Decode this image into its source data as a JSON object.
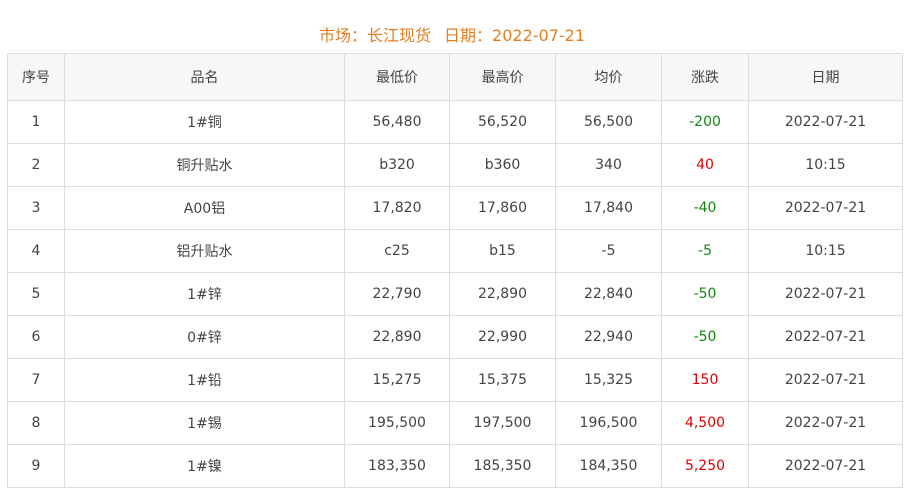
{
  "title": {
    "market_label": "市场：长江现货",
    "date_label": "日期：2022-07-21"
  },
  "colors": {
    "title": "#e87d1e",
    "up": "#e00000",
    "down": "#118811"
  },
  "headers": [
    "序号",
    "品名",
    "最低价",
    "最高价",
    "均价",
    "涨跌",
    "日期"
  ],
  "rows": [
    {
      "no": "1",
      "name": "1#铜",
      "low": "56,480",
      "high": "56,520",
      "avg": "56,500",
      "change": "-200",
      "date": "2022-07-21",
      "dir": "down"
    },
    {
      "no": "2",
      "name": "铜升贴水",
      "low": "b320",
      "high": "b360",
      "avg": "340",
      "change": "40",
      "date": "10:15",
      "dir": "up"
    },
    {
      "no": "3",
      "name": "A00铝",
      "low": "17,820",
      "high": "17,860",
      "avg": "17,840",
      "change": "-40",
      "date": "2022-07-21",
      "dir": "down"
    },
    {
      "no": "4",
      "name": "铝升贴水",
      "low": "c25",
      "high": "b15",
      "avg": "-5",
      "change": "-5",
      "date": "10:15",
      "dir": "down"
    },
    {
      "no": "5",
      "name": "1#锌",
      "low": "22,790",
      "high": "22,890",
      "avg": "22,840",
      "change": "-50",
      "date": "2022-07-21",
      "dir": "down"
    },
    {
      "no": "6",
      "name": "0#锌",
      "low": "22,890",
      "high": "22,990",
      "avg": "22,940",
      "change": "-50",
      "date": "2022-07-21",
      "dir": "down"
    },
    {
      "no": "7",
      "name": "1#铅",
      "low": "15,275",
      "high": "15,375",
      "avg": "15,325",
      "change": "150",
      "date": "2022-07-21",
      "dir": "up"
    },
    {
      "no": "8",
      "name": "1#锡",
      "low": "195,500",
      "high": "197,500",
      "avg": "196,500",
      "change": "4,500",
      "date": "2022-07-21",
      "dir": "up"
    },
    {
      "no": "9",
      "name": "1#镍",
      "low": "183,350",
      "high": "185,350",
      "avg": "184,350",
      "change": "5,250",
      "date": "2022-07-21",
      "dir": "up"
    }
  ]
}
